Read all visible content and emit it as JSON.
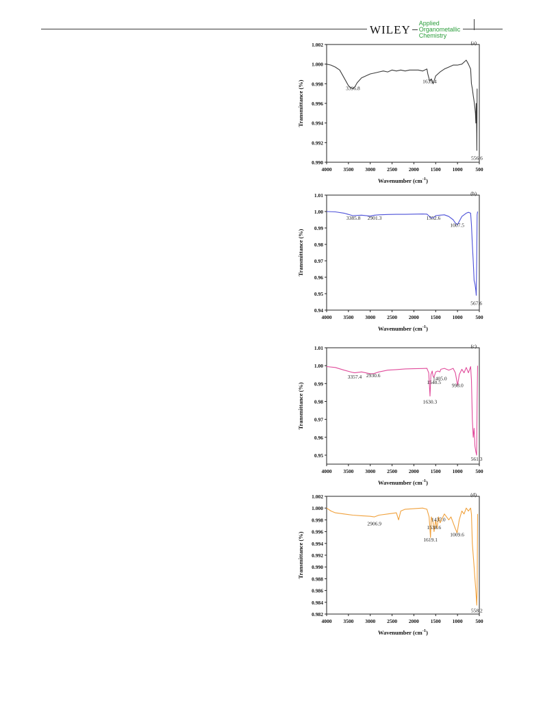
{
  "header": {
    "publisher": "WILEY",
    "journal_line1": "Applied",
    "journal_line2": "Organometallic",
    "journal_line3": "Chemistry"
  },
  "colors": {
    "a": "#3a3a3a",
    "b": "#4b4fd8",
    "c": "#e0499a",
    "d": "#f0a03a"
  },
  "chart_data": [
    {
      "type": "line",
      "panel_label": "(a)",
      "xlabel": "Wavenumber (cm",
      "xlabel_sup": "-1",
      "xlabel_close": ")",
      "ylabel": "Transmittance (%)",
      "xlim": [
        4000,
        500
      ],
      "ylim": [
        0.99,
        1.002
      ],
      "xticks": [
        "4000",
        "3500",
        "3000",
        "2500",
        "2000",
        "1500",
        "1000",
        "500"
      ],
      "yticks": [
        "0.990",
        "0.992",
        "0.994",
        "0.996",
        "0.998",
        "1.000",
        "1.002"
      ],
      "x": [
        4000,
        3900,
        3800,
        3700,
        3600,
        3500,
        3450,
        3400,
        3350,
        3300,
        3200,
        3100,
        3000,
        2900,
        2800,
        2700,
        2600,
        2500,
        2400,
        2300,
        2200,
        2100,
        2000,
        1900,
        1800,
        1700,
        1680,
        1640,
        1600,
        1560,
        1500,
        1400,
        1300,
        1200,
        1100,
        1000,
        900,
        800,
        750,
        700,
        680,
        660,
        640,
        620,
        600,
        590,
        580,
        570,
        560,
        556,
        550
      ],
      "y": [
        1.0,
        0.9999,
        0.9997,
        0.9994,
        0.9986,
        0.9978,
        0.9976,
        0.9975,
        0.9977,
        0.9981,
        0.9986,
        0.9988,
        0.999,
        0.9991,
        0.9992,
        0.9993,
        0.9992,
        0.9994,
        0.9993,
        0.9994,
        0.9993,
        0.9994,
        0.9994,
        0.9994,
        0.9993,
        0.9995,
        0.999,
        0.9983,
        0.9985,
        0.998,
        0.9988,
        0.9992,
        0.9995,
        0.9997,
        0.9999,
        0.9999,
        1.0,
        1.0004,
        1.0,
        0.9995,
        0.998,
        0.9975,
        0.9968,
        0.9962,
        0.9955,
        0.995,
        0.994,
        0.996,
        0.993,
        0.9912,
        0.9975
      ],
      "annotations": [
        {
          "text": "3396.8",
          "x": 3396.8,
          "y": 0.99735
        },
        {
          "text": "1639.4",
          "x": 1639.4,
          "y": 0.99805
        },
        {
          "text": "556.6",
          "x": 556.6,
          "y": 0.99025
        }
      ]
    },
    {
      "type": "line",
      "panel_label": "(b)",
      "xlabel": "Wavenumber (cm",
      "xlabel_sup": "-1",
      "xlabel_close": ")",
      "ylabel": "Transmittance (%)",
      "xlim": [
        4000,
        500
      ],
      "ylim": [
        0.94,
        1.01
      ],
      "xticks": [
        "4000",
        "3500",
        "3000",
        "2500",
        "2000",
        "1500",
        "1000",
        "500"
      ],
      "yticks": [
        "0.94",
        "0.95",
        "0.96",
        "0.97",
        "0.98",
        "0.99",
        "1.00",
        "1.01"
      ],
      "x": [
        4000,
        3800,
        3600,
        3400,
        3200,
        3000,
        2900,
        2800,
        2600,
        2400,
        2200,
        2000,
        1800,
        1700,
        1600,
        1550,
        1500,
        1400,
        1300,
        1200,
        1100,
        1050,
        1000,
        950,
        900,
        800,
        750,
        700,
        680,
        660,
        640,
        620,
        600,
        580,
        570,
        560,
        550,
        540
      ],
      "y": [
        1.0,
        0.9998,
        0.999,
        0.9975,
        0.9978,
        0.9972,
        0.9978,
        0.998,
        0.9982,
        0.9983,
        0.9983,
        0.9984,
        0.9985,
        0.9984,
        0.996,
        0.9962,
        0.9975,
        0.9978,
        0.998,
        0.997,
        0.995,
        0.993,
        0.992,
        0.9945,
        0.997,
        0.999,
        0.9995,
        0.999,
        0.992,
        0.98,
        0.97,
        0.958,
        0.956,
        0.952,
        0.949,
        0.97,
        0.998,
        1.0
      ],
      "annotations": [
        {
          "text": "3385.8",
          "x": 3385.8,
          "y": 0.9951
        },
        {
          "text": "2901.3",
          "x": 2901.3,
          "y": 0.9951
        },
        {
          "text": "1552.6",
          "x": 1552.6,
          "y": 0.9951
        },
        {
          "text": "1007.5",
          "x": 1007.5,
          "y": 0.9907
        },
        {
          "text": "567.6",
          "x": 567.6,
          "y": 0.9431
        }
      ]
    },
    {
      "type": "line",
      "panel_label": "(c)",
      "xlabel": "Wavenumber (cm",
      "xlabel_sup": "-1",
      "xlabel_close": ")",
      "ylabel": "Transmittance (%)",
      "xlim": [
        4000,
        500
      ],
      "ylim": [
        0.945,
        1.01
      ],
      "xticks": [
        "4000",
        "3500",
        "3000",
        "2500",
        "2000",
        "1500",
        "1000",
        "500"
      ],
      "yticks": [
        "0.95",
        "0.96",
        "0.97",
        "0.98",
        "0.99",
        "1.00",
        "1.01"
      ],
      "x": [
        4000,
        3800,
        3600,
        3400,
        3357,
        3200,
        3000,
        2930,
        2800,
        2600,
        2400,
        2200,
        2000,
        1800,
        1700,
        1660,
        1630,
        1610,
        1580,
        1560,
        1540,
        1500,
        1450,
        1405,
        1380,
        1300,
        1200,
        1100,
        1050,
        998,
        960,
        900,
        850,
        800,
        750,
        700,
        680,
        660,
        640,
        620,
        600,
        580,
        561,
        550,
        540
      ],
      "y": [
        0.9995,
        0.999,
        0.9975,
        0.9962,
        0.996,
        0.9965,
        0.9955,
        0.9955,
        0.9965,
        0.9975,
        0.9978,
        0.9982,
        0.9983,
        0.9984,
        0.9985,
        0.996,
        0.983,
        0.995,
        0.997,
        0.994,
        0.9935,
        0.9965,
        0.997,
        0.9965,
        0.998,
        0.9985,
        0.9975,
        0.9985,
        0.996,
        0.989,
        0.995,
        0.998,
        0.996,
        0.999,
        0.996,
        0.9995,
        0.992,
        0.97,
        0.96,
        0.965,
        0.955,
        0.952,
        0.95,
        0.98,
        1.0
      ],
      "annotations": [
        {
          "text": "3357.4",
          "x": 3357.4,
          "y": 0.9928
        },
        {
          "text": "2930.6",
          "x": 2930.6,
          "y": 0.9935
        },
        {
          "text": "1405.0",
          "x": 1405.0,
          "y": 0.9918
        },
        {
          "text": "1540.5",
          "x": 1540.5,
          "y": 0.9897
        },
        {
          "text": "998.0",
          "x": 998.0,
          "y": 0.988
        },
        {
          "text": "1630.3",
          "x": 1630.3,
          "y": 0.9788
        },
        {
          "text": "561.3",
          "x": 561.3,
          "y": 0.947
        }
      ]
    },
    {
      "type": "line",
      "panel_label": "(d)",
      "xlabel": "Wavenumber (cm",
      "xlabel_sup": "-1",
      "xlabel_close": ")",
      "ylabel": "Transmittance (%)",
      "xlim": [
        4000,
        500
      ],
      "ylim": [
        0.982,
        1.002
      ],
      "xticks": [
        "4000",
        "3500",
        "3000",
        "2500",
        "2000",
        "1500",
        "1000",
        "500"
      ],
      "yticks": [
        "0.982",
        "0.984",
        "0.986",
        "0.988",
        "0.990",
        "0.992",
        "0.994",
        "0.996",
        "0.998",
        "1.000",
        "1.002"
      ],
      "x": [
        4000,
        3900,
        3800,
        3600,
        3400,
        3200,
        3000,
        2907,
        2800,
        2600,
        2400,
        2350,
        2300,
        2200,
        2000,
        1800,
        1700,
        1650,
        1619,
        1600,
        1560,
        1538,
        1500,
        1470,
        1437,
        1400,
        1300,
        1200,
        1150,
        1100,
        1050,
        1009,
        960,
        900,
        850,
        800,
        750,
        700,
        680,
        660,
        640,
        620,
        600,
        580,
        558,
        550,
        540
      ],
      "y": [
        1.0,
        0.9995,
        0.9992,
        0.999,
        0.9988,
        0.9987,
        0.9986,
        0.9985,
        0.9988,
        0.999,
        0.9992,
        0.998,
        0.9995,
        0.9998,
        0.9999,
        1.0,
        0.9998,
        0.9985,
        0.995,
        0.9985,
        0.9975,
        0.996,
        0.998,
        0.9965,
        0.9985,
        0.9975,
        0.999,
        0.998,
        0.9985,
        0.9975,
        0.9965,
        0.9958,
        0.998,
        0.9995,
        0.999,
        1.0,
        0.9995,
        1.0,
        0.999,
        0.994,
        0.992,
        0.99,
        0.988,
        0.986,
        0.9835,
        0.986,
        0.999
      ],
      "annotations": [
        {
          "text": "2906.9",
          "x": 2906.9,
          "y": 0.99705
        },
        {
          "text": "1437.0",
          "x": 1437.0,
          "y": 0.99775
        },
        {
          "text": "1538.6",
          "x": 1538.6,
          "y": 0.9964
        },
        {
          "text": "1619.1",
          "x": 1619.1,
          "y": 0.99435
        },
        {
          "text": "1009.6",
          "x": 1009.6,
          "y": 0.9952
        },
        {
          "text": "558.2",
          "x": 558.2,
          "y": 0.9823
        }
      ]
    }
  ]
}
